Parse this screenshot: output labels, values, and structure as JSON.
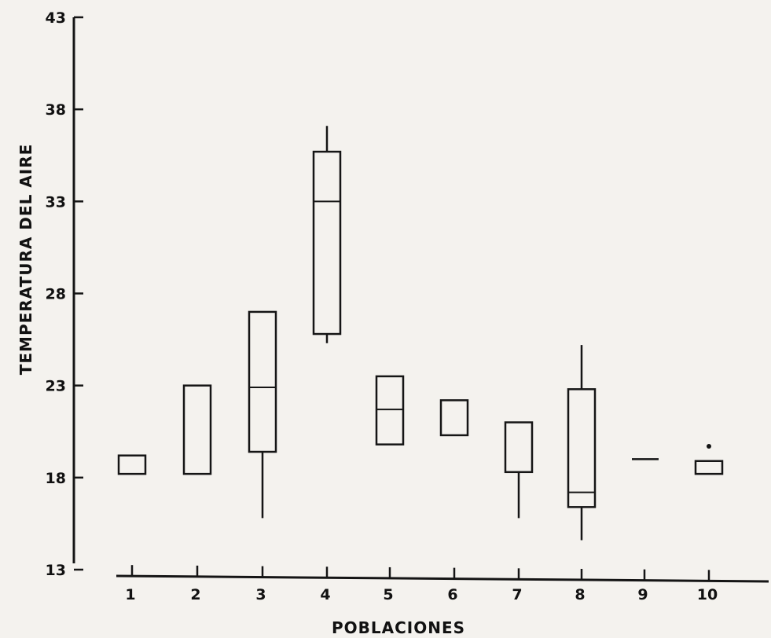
{
  "chart_data": {
    "type": "box",
    "title": "",
    "xlabel": "POBLACIONES",
    "ylabel": "TEMPERATURA DEL AIRE",
    "ylim": [
      13,
      43
    ],
    "yticks": [
      "13",
      "18",
      "23",
      "28",
      "33",
      "38",
      "43"
    ],
    "categories": [
      "1",
      "2",
      "3",
      "4",
      "5",
      "6",
      "7",
      "8",
      "9",
      "10"
    ],
    "boxes": [
      {
        "category": "1",
        "whisker_low": null,
        "q1": 18.2,
        "median": null,
        "q3": 19.2,
        "whisker_high": null
      },
      {
        "category": "2",
        "whisker_low": null,
        "q1": 18.2,
        "median": null,
        "q3": 23.0,
        "whisker_high": null
      },
      {
        "category": "3",
        "whisker_low": 15.8,
        "q1": 19.4,
        "median": 22.9,
        "q3": 27.0,
        "whisker_high": null
      },
      {
        "category": "4",
        "whisker_low": 25.3,
        "q1": 25.8,
        "median": 33.0,
        "q3": 35.7,
        "whisker_high": 37.1
      },
      {
        "category": "5",
        "whisker_low": null,
        "q1": 19.8,
        "median": 21.7,
        "q3": 23.5,
        "whisker_high": null
      },
      {
        "category": "6",
        "whisker_low": null,
        "q1": 20.3,
        "median": null,
        "q3": 22.2,
        "whisker_high": null
      },
      {
        "category": "7",
        "whisker_low": 15.8,
        "q1": 18.3,
        "median": null,
        "q3": 21.0,
        "whisker_high": null
      },
      {
        "category": "8",
        "whisker_low": 14.6,
        "q1": 16.4,
        "median": 17.2,
        "q3": 22.8,
        "whisker_high": 25.2
      },
      {
        "category": "9",
        "whisker_low": null,
        "q1": 19.0,
        "median": 19.0,
        "q3": 19.0,
        "whisker_high": null
      },
      {
        "category": "10",
        "whisker_low": null,
        "q1": 18.2,
        "median": null,
        "q3": 18.9,
        "whisker_high": null,
        "outlier": 19.7
      }
    ],
    "grid": false,
    "legend": "none"
  }
}
